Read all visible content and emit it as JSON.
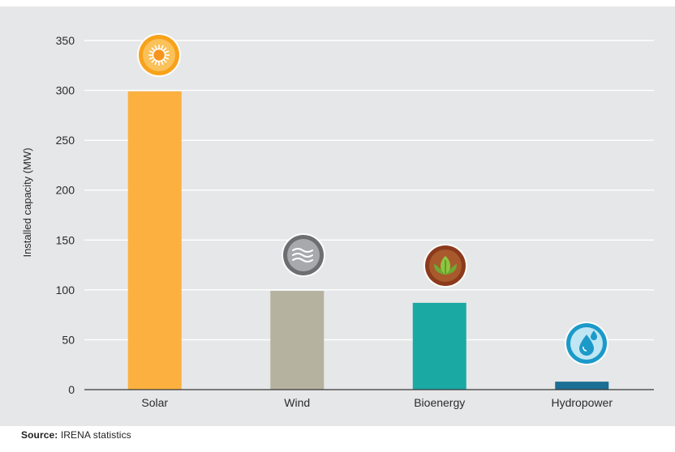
{
  "chart_data": {
    "type": "bar",
    "title": "",
    "xlabel": "",
    "ylabel": "Installed capacity (MW)",
    "categories": [
      "Solar",
      "Wind",
      "Bioenergy",
      "Hydropower"
    ],
    "values": [
      299,
      99,
      87,
      8
    ],
    "ylim": [
      0,
      350
    ],
    "yticks": [
      0,
      50,
      100,
      150,
      200,
      250,
      300,
      350
    ],
    "grid": true,
    "legend": "none",
    "colors": [
      "#fbb040",
      "#b6b2a0",
      "#1ba9a4",
      "#1b6e94"
    ],
    "icons": [
      "sun-icon",
      "wind-icon",
      "leaf-icon",
      "water-drop-icon"
    ]
  },
  "source": {
    "label": "Source:",
    "text": " IRENA statistics"
  }
}
